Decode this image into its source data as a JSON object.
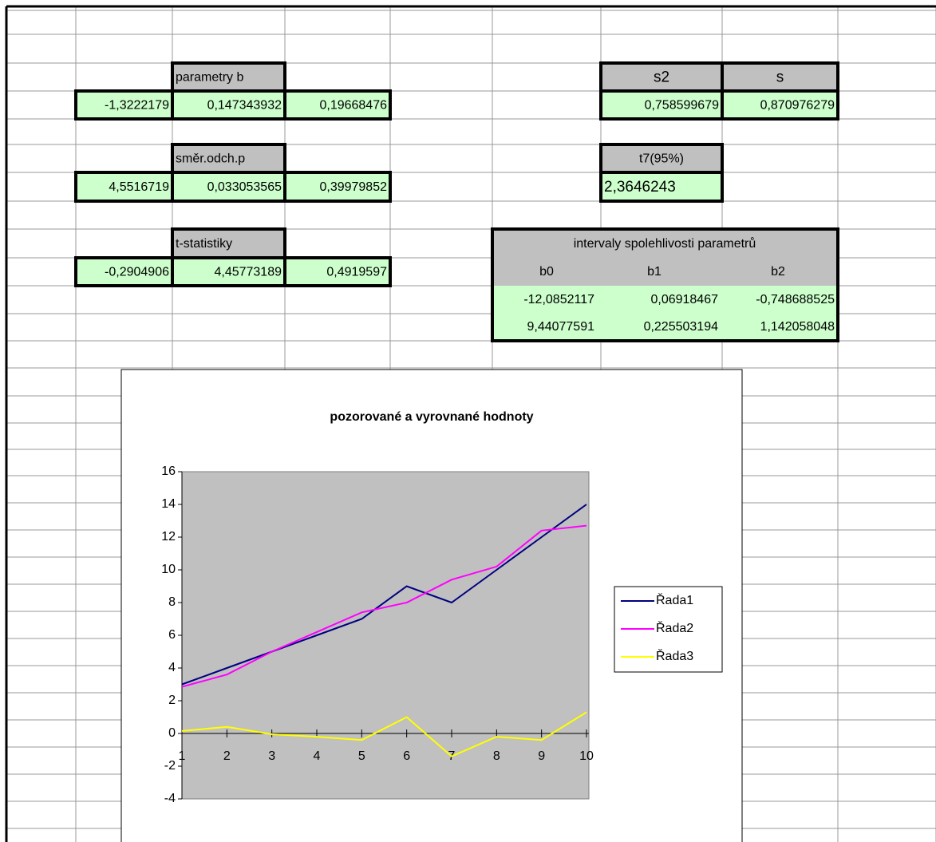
{
  "parameters": {
    "label": "parametry b",
    "values": [
      "-1,3222179",
      "0,147343932",
      "0,19668476"
    ]
  },
  "std_errors": {
    "label": "směr.odch.p",
    "values": [
      "4,5516719",
      "0,033053565",
      "0,39979852"
    ]
  },
  "t_stats": {
    "label": "t-statistiky",
    "values": [
      "-0,2904906",
      "4,45773189",
      "0,4919597"
    ]
  },
  "variance": {
    "headers": [
      "s2",
      "s"
    ],
    "values": [
      "0,758599679",
      "0,870976279"
    ]
  },
  "t_quantile": {
    "label": "t7(95%)",
    "value": "2,3646243"
  },
  "intervals": {
    "title": "intervaly spolehlivosti parametrů",
    "headers": [
      "b0",
      "b1",
      "b2"
    ],
    "rows": [
      [
        "-12,0852117",
        "0,06918467",
        "-0,748688525"
      ],
      [
        "9,44077591",
        "0,225503194",
        "1,142058048"
      ]
    ]
  },
  "chart": {
    "type": "line",
    "title": "pozorované a vyrovnané hodnoty",
    "categories": [
      1,
      2,
      3,
      4,
      5,
      6,
      7,
      8,
      9,
      10
    ],
    "ylim": [
      -4,
      16
    ],
    "yticks": [
      -4,
      -2,
      0,
      2,
      4,
      6,
      8,
      10,
      12,
      14,
      16
    ],
    "series": [
      {
        "name": "Řada1",
        "color": "#000080",
        "values": [
          3,
          4,
          5,
          6,
          7,
          9,
          8,
          10,
          12,
          14
        ]
      },
      {
        "name": "Řada2",
        "color": "#ff00ff",
        "values": [
          2.85,
          3.6,
          5,
          6.2,
          7.4,
          8,
          9.4,
          10.2,
          12.4,
          12.7
        ]
      },
      {
        "name": "Řada3",
        "color": "#ffff00",
        "values": [
          0.15,
          0.4,
          -0.05,
          -0.2,
          -0.4,
          1,
          -1.4,
          -0.2,
          -0.4,
          1.3
        ]
      }
    ]
  }
}
